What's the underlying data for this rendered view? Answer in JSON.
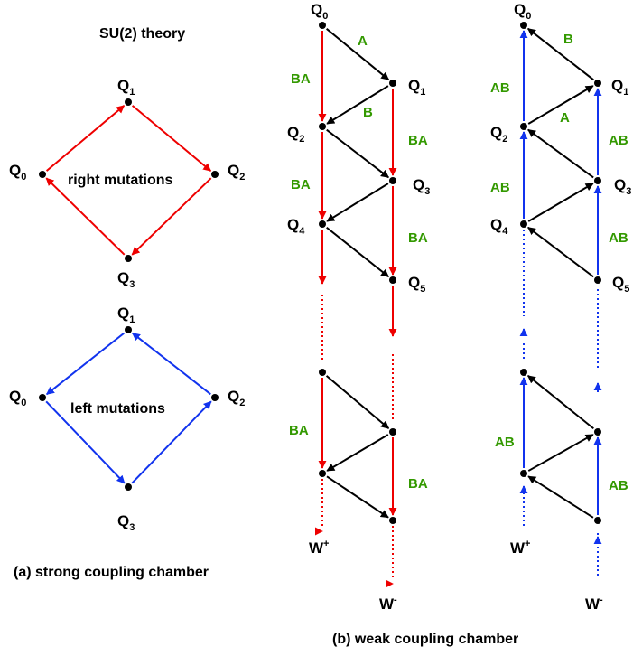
{
  "captions": {
    "su2_title": "SU(2) theory",
    "right_mutations": "right mutations",
    "left_mutations": "left mutations",
    "caption_a": "(a)  strong coupling chamber",
    "caption_b": "(b) weak coupling chamber"
  },
  "node_labels": {
    "q0": {
      "main": "Q",
      "sub": "0"
    },
    "q1": {
      "main": "Q",
      "sub": "1"
    },
    "q2": {
      "main": "Q",
      "sub": "2"
    },
    "q3": {
      "main": "Q",
      "sub": "3"
    },
    "q4": {
      "main": "Q",
      "sub": "4"
    },
    "q5": {
      "main": "Q",
      "sub": "5"
    },
    "w_plus": {
      "main": "W",
      "sup": "+"
    },
    "w_minus": {
      "main": "W",
      "sup": "-"
    }
  },
  "edge_labels": {
    "a": "A",
    "b": "B",
    "ba": "BA",
    "ab": "AB"
  },
  "colors": {
    "red": "#ee0000",
    "blue": "#1133ee",
    "black": "#000000",
    "green": "#339900"
  }
}
